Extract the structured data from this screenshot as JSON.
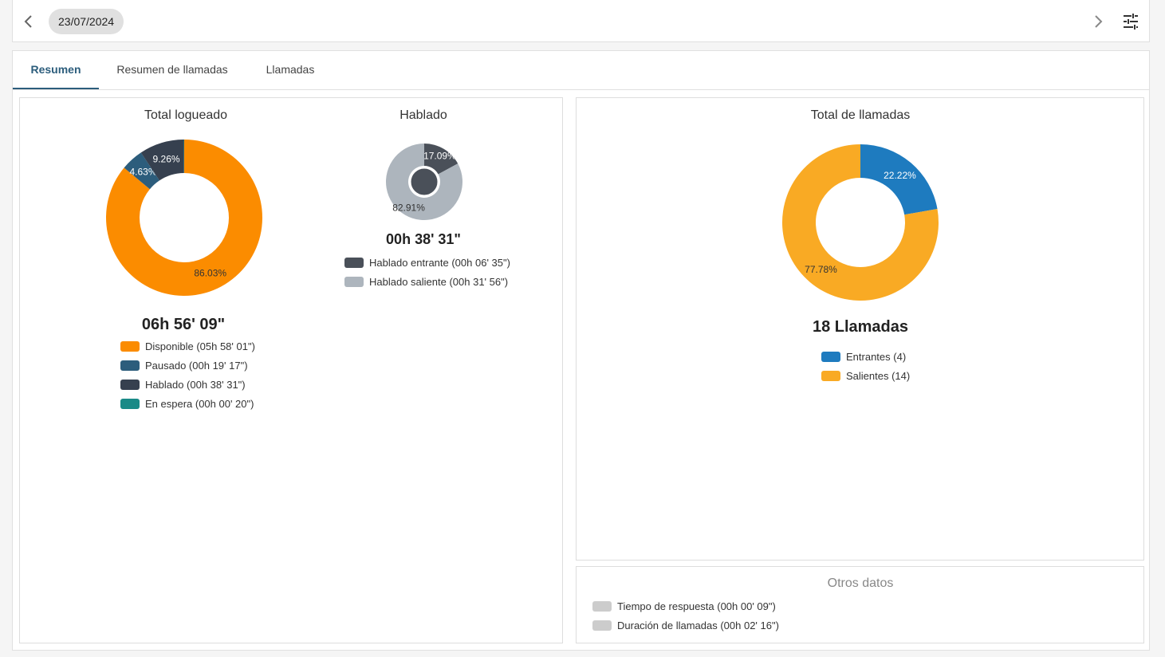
{
  "toolbar": {
    "date": "23/07/2024",
    "prev_icon": "chevron-left-icon",
    "next_icon": "chevron-right-icon",
    "settings_icon": "tune-icon"
  },
  "tabs": [
    {
      "label": "Resumen",
      "active": true
    },
    {
      "label": "Resumen de llamadas",
      "active": false
    },
    {
      "label": "Llamadas",
      "active": false
    }
  ],
  "total_logueado": {
    "title": "Total logueado",
    "total": "06h 56' 09\"",
    "legend": [
      {
        "label": "Disponible (05h 58' 01\")",
        "color": "#fb8c00"
      },
      {
        "label": "Pausado (00h 19' 17\")",
        "color": "#2c5d7c"
      },
      {
        "label": "Hablado (00h 38' 31\")",
        "color": "#36404f"
      },
      {
        "label": "En espera (00h 00' 20\")",
        "color": "#1a8a87"
      }
    ]
  },
  "hablado": {
    "title": "Hablado",
    "total": "00h 38' 31\"",
    "legend": [
      {
        "label": "Hablado entrante (00h 06' 35\")",
        "color": "#4a5059"
      },
      {
        "label": "Hablado saliente (00h 31' 56\")",
        "color": "#adb5bd"
      }
    ]
  },
  "total_llamadas": {
    "title": "Total de llamadas",
    "total": "18 Llamadas",
    "legend": [
      {
        "label": "Entrantes (4)",
        "color": "#1e7bbf"
      },
      {
        "label": "Salientes (14)",
        "color": "#f9aa24"
      }
    ]
  },
  "otros_datos": {
    "title": "Otros datos",
    "items": [
      {
        "label": "Tiempo de respuesta (00h 00' 09\")",
        "color": "#cccccc"
      },
      {
        "label": "Duración de llamadas (00h 02' 16\")",
        "color": "#cccccc"
      }
    ]
  },
  "chart_data": [
    {
      "type": "pie",
      "title": "Total logueado",
      "categories": [
        "Disponible",
        "Pausado",
        "Hablado",
        "En espera"
      ],
      "values": [
        86.03,
        4.63,
        9.26,
        0.08
      ],
      "labels": [
        "86.03%",
        "4.63%",
        "9.26%",
        ""
      ],
      "colors": [
        "#fb8c00",
        "#2c5d7c",
        "#36404f",
        "#1a8a87"
      ]
    },
    {
      "type": "pie",
      "title": "Hablado",
      "categories": [
        "Hablado entrante",
        "Hablado saliente"
      ],
      "values": [
        17.09,
        82.91
      ],
      "labels": [
        "17.09%",
        "82.91%"
      ],
      "colors": [
        "#4a5059",
        "#adb5bd"
      ]
    },
    {
      "type": "pie",
      "title": "Total de llamadas",
      "categories": [
        "Entrantes",
        "Salientes"
      ],
      "values": [
        22.22,
        77.78
      ],
      "labels": [
        "22.22%",
        "77.78%"
      ],
      "colors": [
        "#1e7bbf",
        "#f9aa24"
      ]
    }
  ]
}
